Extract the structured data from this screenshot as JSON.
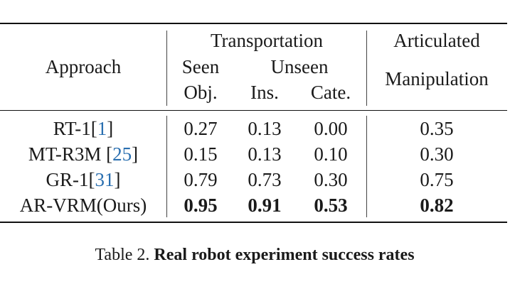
{
  "table": {
    "headers": {
      "approach": "Approach",
      "transportation": "Transportation",
      "seen": "Seen",
      "unseen": "Unseen",
      "obj": "Obj.",
      "ins": "Ins.",
      "cate": "Cate.",
      "articulated": "Articulated",
      "manipulation": "Manipulation"
    },
    "rows": [
      {
        "name": "RT-1",
        "cite": "1",
        "obj": "0.27",
        "ins": "0.13",
        "cate": "0.00",
        "art": "0.35"
      },
      {
        "name": "MT-R3M ",
        "cite": "25",
        "obj": "0.15",
        "ins": "0.13",
        "cate": "0.10",
        "art": "0.30"
      },
      {
        "name": "GR-1",
        "cite": "31",
        "obj": "0.79",
        "ins": "0.73",
        "cate": "0.30",
        "art": "0.75"
      },
      {
        "name": "AR-VRM(Ours)",
        "cite": "",
        "obj": "0.95",
        "ins": "0.91",
        "cate": "0.53",
        "art": "0.82"
      }
    ]
  },
  "caption": {
    "label": "Table 2.",
    "text": "Real robot experiment success rates"
  }
}
